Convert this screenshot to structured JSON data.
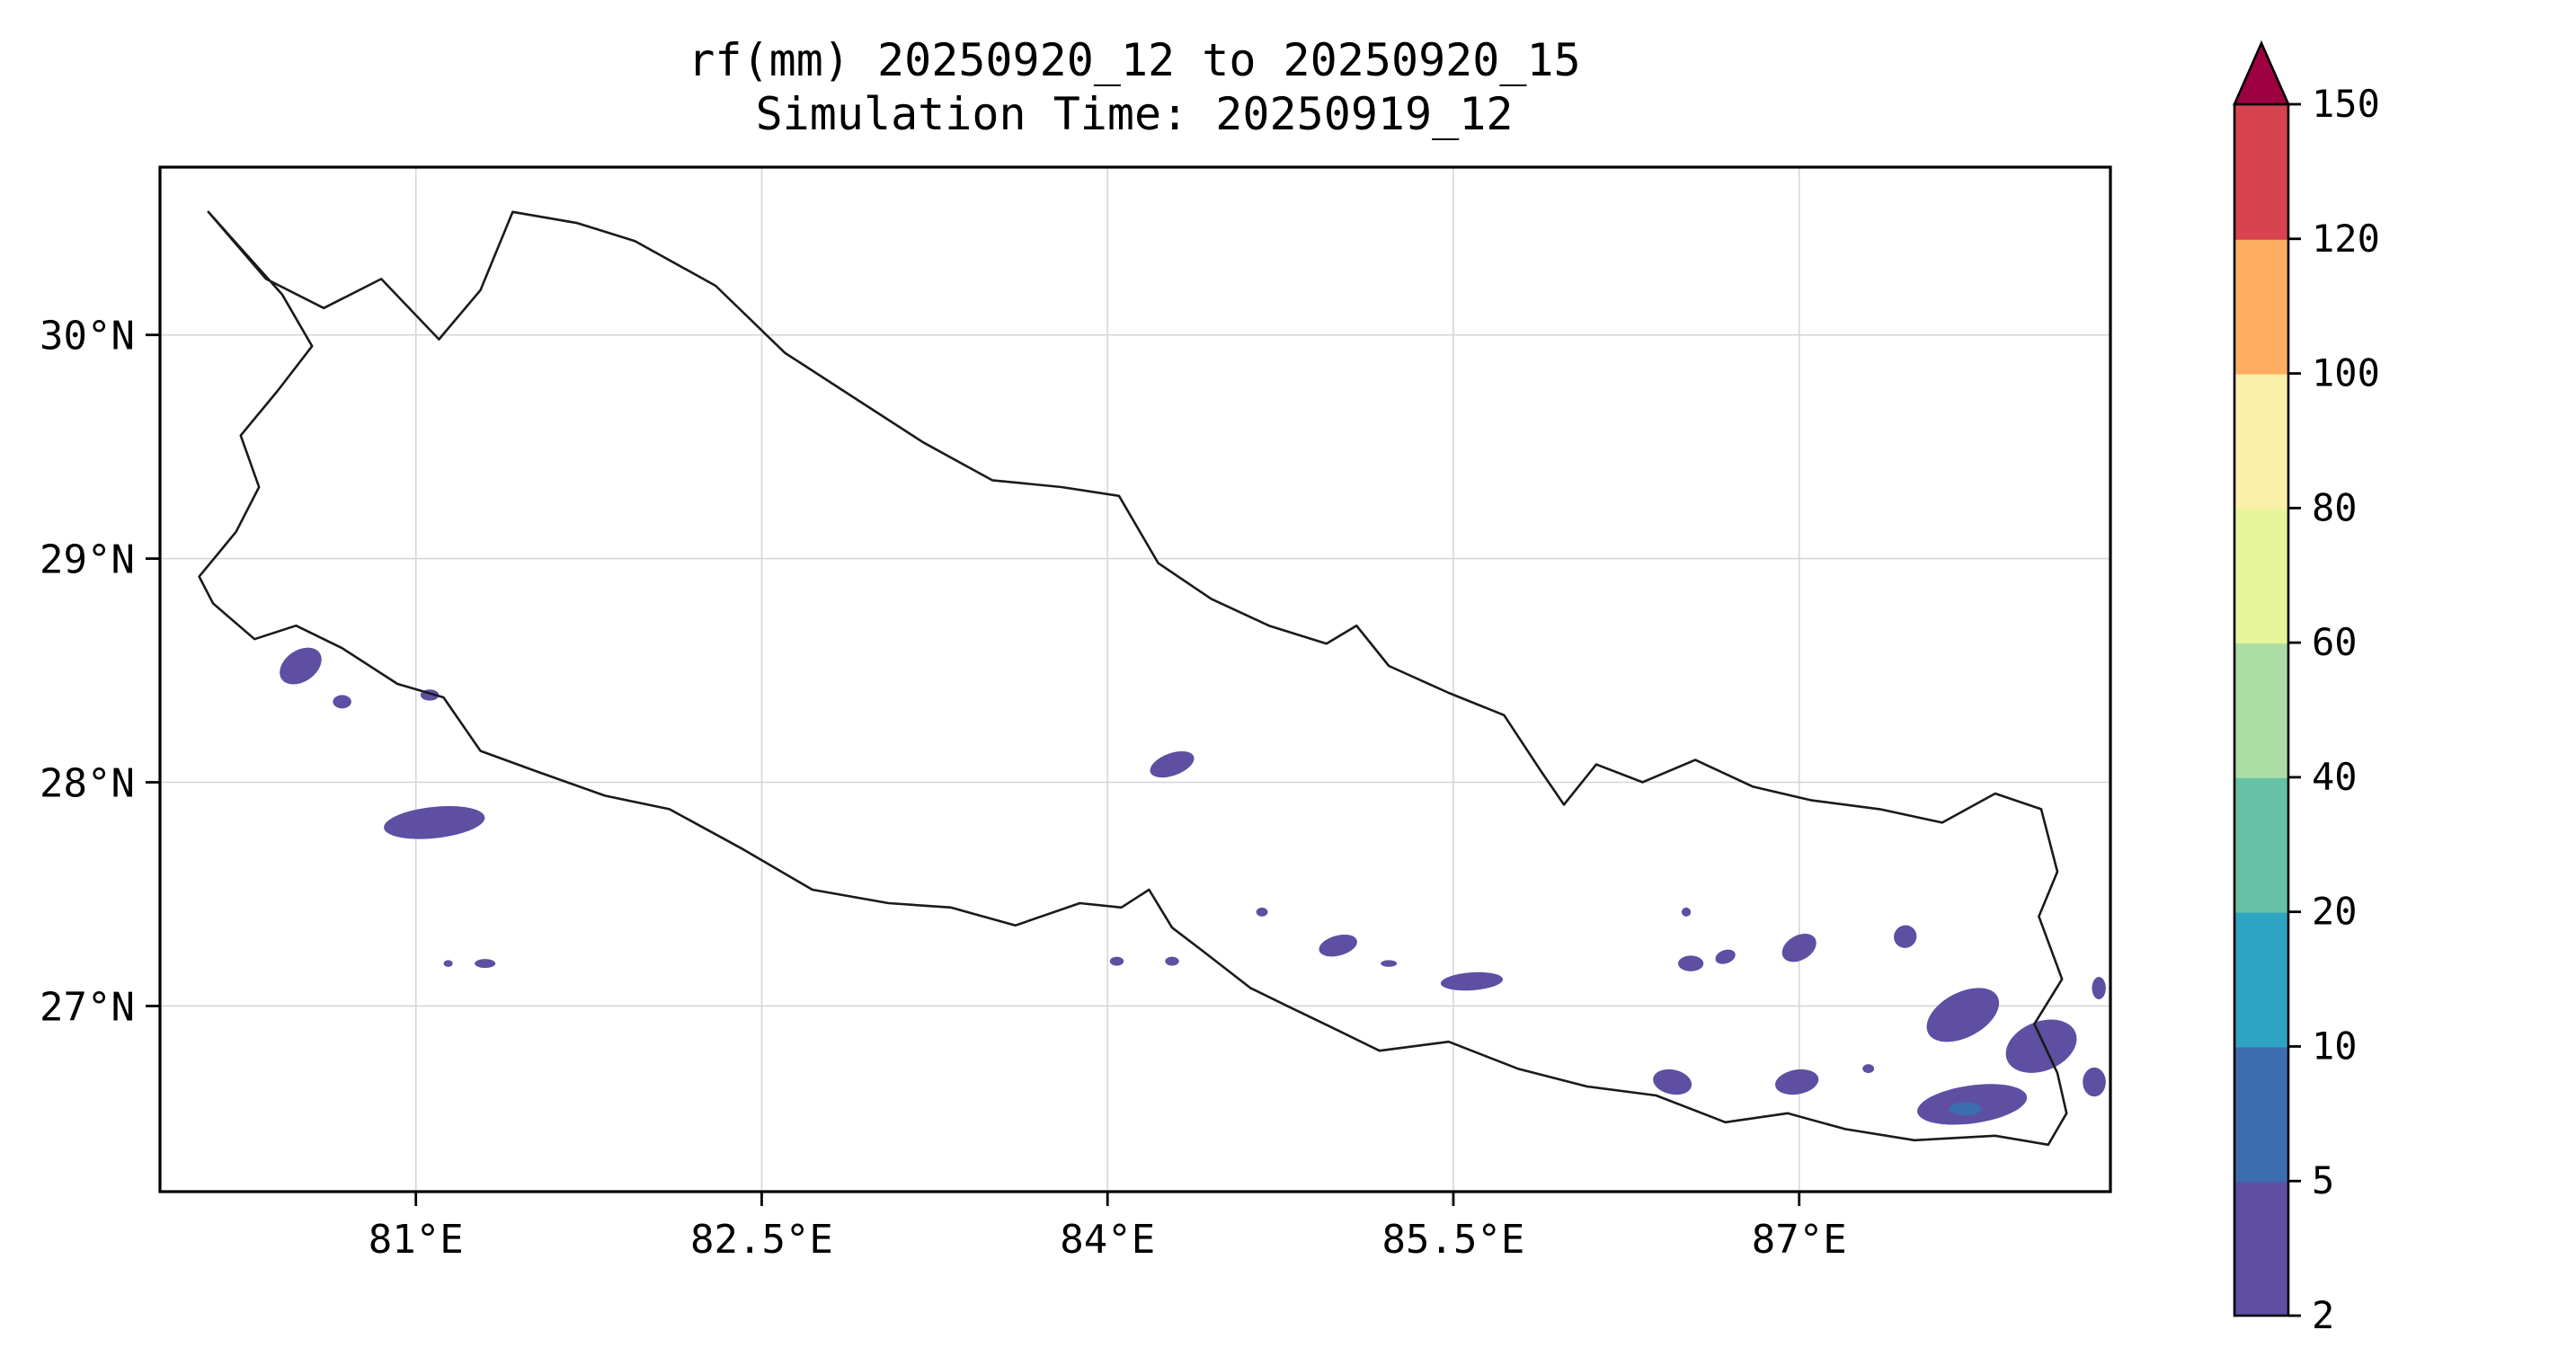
{
  "chart_data": {
    "type": "heatmap",
    "title": "rf(mm) 20250920_12 to 20250920_15",
    "subtitle": "Simulation Time: 20250919_12",
    "variable": "rf(mm)",
    "valid_from": "20250920_12",
    "valid_to": "20250920_15",
    "simulation_time": "20250919_12",
    "xlabel": "",
    "ylabel": "",
    "grid": "on",
    "grid_color": "#d6d6d6",
    "border_color": "#1a1a1a",
    "background_color": "#ffffff",
    "extent": {
      "lon_min": 79.89,
      "lon_max": 88.35,
      "lat_min": 26.17,
      "lat_max": 30.75
    },
    "x_ticks": [
      {
        "value": 81.0,
        "label": "81°E"
      },
      {
        "value": 82.5,
        "label": "82.5°E"
      },
      {
        "value": 84.0,
        "label": "84°E"
      },
      {
        "value": 85.5,
        "label": "85.5°E"
      },
      {
        "value": 87.0,
        "label": "87°E"
      }
    ],
    "y_ticks": [
      {
        "value": 30.0,
        "label": "30°N"
      },
      {
        "value": 29.0,
        "label": "29°N"
      },
      {
        "value": 28.0,
        "label": "28°N"
      },
      {
        "value": 27.0,
        "label": "27°N"
      }
    ],
    "colorbar": {
      "levels": [
        2,
        5,
        10,
        20,
        40,
        60,
        80,
        100,
        120,
        150
      ],
      "tick_labels": [
        "2",
        "5",
        "10",
        "20",
        "40",
        "60",
        "80",
        "100",
        "120",
        "150"
      ],
      "segment_colors": [
        "#5e4fa2",
        "#3c6db0",
        "#2fa3c2",
        "#66c2a5",
        "#abdda4",
        "#e6f598",
        "#faf0a9",
        "#fdae61",
        "#d7434e"
      ],
      "extend": "max",
      "extend_max_color": "#9e0142",
      "units": "mm"
    },
    "map_outline": [
      [
        80.1,
        30.55
      ],
      [
        80.35,
        30.25
      ],
      [
        80.6,
        30.12
      ],
      [
        80.85,
        30.25
      ],
      [
        81.1,
        29.98
      ],
      [
        81.28,
        30.2
      ],
      [
        81.42,
        30.55
      ],
      [
        81.7,
        30.5
      ],
      [
        81.95,
        30.42
      ],
      [
        82.3,
        30.22
      ],
      [
        82.6,
        29.92
      ],
      [
        82.9,
        29.72
      ],
      [
        83.2,
        29.52
      ],
      [
        83.5,
        29.35
      ],
      [
        83.8,
        29.32
      ],
      [
        84.05,
        29.28
      ],
      [
        84.22,
        28.98
      ],
      [
        84.45,
        28.82
      ],
      [
        84.7,
        28.7
      ],
      [
        84.95,
        28.62
      ],
      [
        85.08,
        28.7
      ],
      [
        85.22,
        28.52
      ],
      [
        85.48,
        28.4
      ],
      [
        85.72,
        28.3
      ],
      [
        85.88,
        28.05
      ],
      [
        85.98,
        27.9
      ],
      [
        86.12,
        28.08
      ],
      [
        86.32,
        28.0
      ],
      [
        86.55,
        28.1
      ],
      [
        86.8,
        27.98
      ],
      [
        87.05,
        27.92
      ],
      [
        87.35,
        27.88
      ],
      [
        87.62,
        27.82
      ],
      [
        87.85,
        27.95
      ],
      [
        88.05,
        27.88
      ],
      [
        88.12,
        27.6
      ],
      [
        88.04,
        27.4
      ],
      [
        88.14,
        27.12
      ],
      [
        88.02,
        26.92
      ],
      [
        88.12,
        26.7
      ],
      [
        88.16,
        26.52
      ],
      [
        88.08,
        26.38
      ],
      [
        87.85,
        26.42
      ],
      [
        87.5,
        26.4
      ],
      [
        87.2,
        26.45
      ],
      [
        86.95,
        26.52
      ],
      [
        86.68,
        26.48
      ],
      [
        86.38,
        26.6
      ],
      [
        86.08,
        26.64
      ],
      [
        85.78,
        26.72
      ],
      [
        85.48,
        26.84
      ],
      [
        85.18,
        26.8
      ],
      [
        84.98,
        26.9
      ],
      [
        84.78,
        27.0
      ],
      [
        84.62,
        27.08
      ],
      [
        84.42,
        27.24
      ],
      [
        84.28,
        27.35
      ],
      [
        84.18,
        27.52
      ],
      [
        84.06,
        27.44
      ],
      [
        83.88,
        27.46
      ],
      [
        83.6,
        27.36
      ],
      [
        83.32,
        27.44
      ],
      [
        83.05,
        27.46
      ],
      [
        82.72,
        27.52
      ],
      [
        82.42,
        27.7
      ],
      [
        82.1,
        27.88
      ],
      [
        81.82,
        27.94
      ],
      [
        81.52,
        28.05
      ],
      [
        81.28,
        28.14
      ],
      [
        81.12,
        28.38
      ],
      [
        80.92,
        28.44
      ],
      [
        80.68,
        28.6
      ],
      [
        80.48,
        28.7
      ],
      [
        80.3,
        28.64
      ],
      [
        80.12,
        28.8
      ],
      [
        80.06,
        28.92
      ],
      [
        80.22,
        29.12
      ],
      [
        80.32,
        29.32
      ],
      [
        80.24,
        29.55
      ],
      [
        80.4,
        29.75
      ],
      [
        80.55,
        29.95
      ],
      [
        80.42,
        30.18
      ],
      [
        80.1,
        30.55
      ]
    ],
    "rain_patches": [
      {
        "lon": 80.5,
        "lat": 28.52,
        "w_deg": 0.2,
        "h_deg": 0.14,
        "rot_deg": -35,
        "level_index": 0,
        "mm_range": "2-5"
      },
      {
        "lon": 80.68,
        "lat": 28.36,
        "w_deg": 0.08,
        "h_deg": 0.06,
        "rot_deg": 0,
        "level_index": 0,
        "mm_range": "2-5"
      },
      {
        "lon": 81.06,
        "lat": 28.39,
        "w_deg": 0.08,
        "h_deg": 0.05,
        "rot_deg": 0,
        "level_index": 0,
        "mm_range": "2-5"
      },
      {
        "lon": 81.08,
        "lat": 27.82,
        "w_deg": 0.44,
        "h_deg": 0.14,
        "rot_deg": -6,
        "level_index": 0,
        "mm_range": "2-5"
      },
      {
        "lon": 81.14,
        "lat": 27.19,
        "w_deg": 0.04,
        "h_deg": 0.03,
        "rot_deg": 0,
        "level_index": 0,
        "mm_range": "2-5"
      },
      {
        "lon": 81.3,
        "lat": 27.19,
        "w_deg": 0.09,
        "h_deg": 0.04,
        "rot_deg": 0,
        "level_index": 0,
        "mm_range": "2-5"
      },
      {
        "lon": 84.28,
        "lat": 28.08,
        "w_deg": 0.2,
        "h_deg": 0.1,
        "rot_deg": -20,
        "level_index": 0,
        "mm_range": "2-5"
      },
      {
        "lon": 84.04,
        "lat": 27.2,
        "w_deg": 0.06,
        "h_deg": 0.04,
        "rot_deg": 0,
        "level_index": 0,
        "mm_range": "2-5"
      },
      {
        "lon": 84.28,
        "lat": 27.2,
        "w_deg": 0.06,
        "h_deg": 0.04,
        "rot_deg": 0,
        "level_index": 0,
        "mm_range": "2-5"
      },
      {
        "lon": 84.67,
        "lat": 27.42,
        "w_deg": 0.05,
        "h_deg": 0.04,
        "rot_deg": 0,
        "level_index": 0,
        "mm_range": "2-5"
      },
      {
        "lon": 85.0,
        "lat": 27.27,
        "w_deg": 0.17,
        "h_deg": 0.09,
        "rot_deg": -15,
        "level_index": 0,
        "mm_range": "2-5"
      },
      {
        "lon": 85.22,
        "lat": 27.19,
        "w_deg": 0.07,
        "h_deg": 0.03,
        "rot_deg": 0,
        "level_index": 0,
        "mm_range": "2-5"
      },
      {
        "lon": 85.58,
        "lat": 27.11,
        "w_deg": 0.27,
        "h_deg": 0.08,
        "rot_deg": -4,
        "level_index": 0,
        "mm_range": "2-5"
      },
      {
        "lon": 86.51,
        "lat": 27.42,
        "w_deg": 0.04,
        "h_deg": 0.04,
        "rot_deg": 0,
        "level_index": 0,
        "mm_range": "2-5"
      },
      {
        "lon": 86.53,
        "lat": 27.19,
        "w_deg": 0.11,
        "h_deg": 0.07,
        "rot_deg": 0,
        "level_index": 0,
        "mm_range": "2-5"
      },
      {
        "lon": 86.68,
        "lat": 27.22,
        "w_deg": 0.09,
        "h_deg": 0.06,
        "rot_deg": -20,
        "level_index": 0,
        "mm_range": "2-5"
      },
      {
        "lon": 87.0,
        "lat": 27.26,
        "w_deg": 0.16,
        "h_deg": 0.11,
        "rot_deg": -30,
        "level_index": 0,
        "mm_range": "2-5"
      },
      {
        "lon": 87.46,
        "lat": 27.31,
        "w_deg": 0.1,
        "h_deg": 0.1,
        "rot_deg": -40,
        "level_index": 0,
        "mm_range": "2-5"
      },
      {
        "lon": 87.71,
        "lat": 26.96,
        "w_deg": 0.34,
        "h_deg": 0.2,
        "rot_deg": -28,
        "level_index": 0,
        "mm_range": "2-5"
      },
      {
        "lon": 86.45,
        "lat": 26.66,
        "w_deg": 0.17,
        "h_deg": 0.11,
        "rot_deg": 12,
        "level_index": 0,
        "mm_range": "2-5"
      },
      {
        "lon": 86.99,
        "lat": 26.66,
        "w_deg": 0.19,
        "h_deg": 0.11,
        "rot_deg": -10,
        "level_index": 0,
        "mm_range": "2-5"
      },
      {
        "lon": 87.75,
        "lat": 26.56,
        "w_deg": 0.48,
        "h_deg": 0.17,
        "rot_deg": -8,
        "level_index": 0,
        "mm_range": "2-5"
      },
      {
        "lon": 88.05,
        "lat": 26.82,
        "w_deg": 0.32,
        "h_deg": 0.22,
        "rot_deg": -22,
        "level_index": 0,
        "mm_range": "2-5"
      },
      {
        "lon": 88.28,
        "lat": 26.66,
        "w_deg": 0.1,
        "h_deg": 0.13,
        "rot_deg": 0,
        "level_index": 0,
        "mm_range": "2-5"
      },
      {
        "lon": 88.3,
        "lat": 27.08,
        "w_deg": 0.06,
        "h_deg": 0.1,
        "rot_deg": 0,
        "level_index": 0,
        "mm_range": "2-5"
      },
      {
        "lon": 87.3,
        "lat": 26.72,
        "w_deg": 0.05,
        "h_deg": 0.04,
        "rot_deg": 0,
        "level_index": 0,
        "mm_range": "2-5"
      },
      {
        "lon": 87.72,
        "lat": 26.54,
        "w_deg": 0.14,
        "h_deg": 0.06,
        "rot_deg": 0,
        "level_index": 1,
        "mm_range": "5-10"
      }
    ]
  }
}
